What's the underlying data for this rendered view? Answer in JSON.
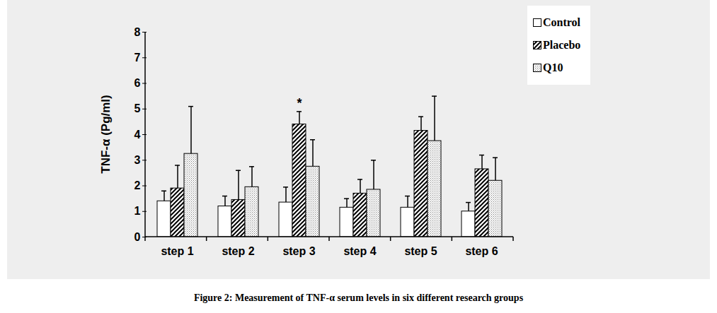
{
  "chart_data": {
    "type": "bar",
    "caption": "Figure 2: Measurement of TNF-α serum levels in six different research groups",
    "y_label": "TNF-α (Pg/ml)",
    "categories": [
      "step 1",
      "step 2",
      "step 3",
      "step 4",
      "step 5",
      "step 6"
    ],
    "series": [
      {
        "name": "Control",
        "color": "#ffffff",
        "values": [
          1.4,
          1.2,
          1.35,
          1.15,
          1.15,
          1.0
        ],
        "errors": [
          0.4,
          0.4,
          0.6,
          0.35,
          0.45,
          0.35
        ]
      },
      {
        "name": "Placebo",
        "color": "#000000",
        "values": [
          1.9,
          1.45,
          4.4,
          1.7,
          4.15,
          2.65
        ],
        "errors": [
          0.9,
          1.15,
          0.5,
          0.55,
          0.55,
          0.55
        ]
      },
      {
        "name": "Q10",
        "color": "#808080",
        "values": [
          3.25,
          1.95,
          2.75,
          1.85,
          3.75,
          2.2
        ],
        "errors": [
          1.85,
          0.8,
          1.05,
          1.15,
          1.75,
          0.9
        ]
      }
    ],
    "annotations": [
      {
        "text": "*",
        "category": "step 3",
        "series": "Placebo"
      }
    ],
    "ylim": [
      0,
      8
    ],
    "yticks": [
      0,
      1,
      2,
      3,
      4,
      5,
      6,
      7,
      8
    ],
    "grid": false,
    "legend": "top-right"
  }
}
